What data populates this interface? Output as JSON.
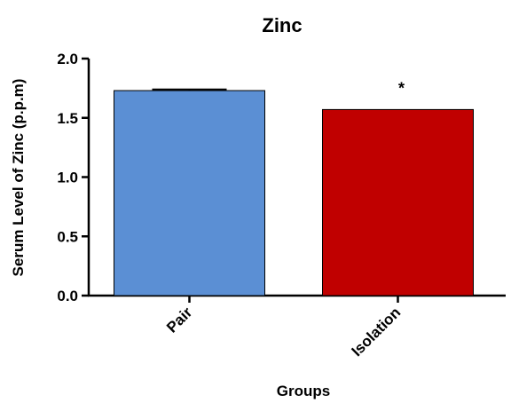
{
  "chart_data": {
    "type": "bar",
    "title": "Zinc",
    "xlabel": "Groups",
    "ylabel": "Serum Level of Zinc (p.p.m)",
    "categories": [
      "Pair",
      "Isolation"
    ],
    "values": [
      1.73,
      1.57
    ],
    "errors": [
      0.01,
      0.0
    ],
    "colors": [
      "#5b8fd4",
      "#c00000"
    ],
    "annotations": [
      "",
      "*"
    ],
    "ylim": [
      0,
      2.0
    ],
    "yticks": [
      "0.0",
      "0.5",
      "1.0",
      "1.5",
      "2.0"
    ],
    "grid": false
  }
}
